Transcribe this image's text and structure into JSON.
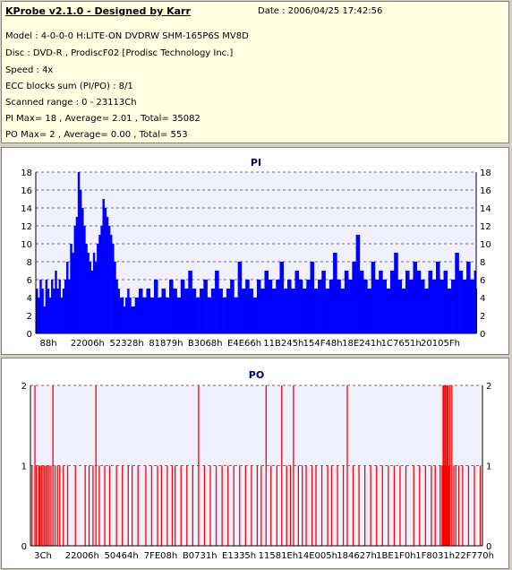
{
  "header": {
    "title": "KProbe v2.1.0 - Designed by Karr",
    "date": "Date : 2006/04/25 17:42:56",
    "lines": [
      "Model : 4-0-0-0 H:LITE-ON DVDRW SHM-165P6S MV8D",
      "Disc : DVD-R , ProdiscF02 [Prodisc Technology Inc.]",
      "Speed : 4x",
      "ECC blocks sum (PI/PO) : 8/1",
      "Scanned range : 0 - 23113Ch",
      "PI Max= 18 , Average= 2.01 , Total= 35082",
      "PO Max= 2 , Average= 0.00 , Total= 553"
    ]
  },
  "chart_data": [
    {
      "type": "bar",
      "title": "PI",
      "color": "#0000ff",
      "ylim": [
        0,
        18
      ],
      "yticks": [
        0,
        2,
        4,
        6,
        8,
        10,
        12,
        14,
        16,
        18
      ],
      "xlim": [
        0,
        23113
      ],
      "xtick_labels": [
        "88h",
        "22006h",
        "52328h",
        "81879h",
        "B3068h",
        "E4E66h",
        "11B245h",
        "154F48h",
        "18E241h",
        "1C7651h",
        "20105Fh"
      ],
      "grid": "dashed",
      "points": [
        [
          0,
          5
        ],
        [
          100,
          4
        ],
        [
          200,
          6
        ],
        [
          300,
          5
        ],
        [
          400,
          3
        ],
        [
          500,
          6
        ],
        [
          600,
          5
        ],
        [
          700,
          4
        ],
        [
          800,
          6
        ],
        [
          900,
          5
        ],
        [
          1000,
          7
        ],
        [
          1100,
          5
        ],
        [
          1200,
          6
        ],
        [
          1300,
          4
        ],
        [
          1400,
          5
        ],
        [
          1500,
          6
        ],
        [
          1600,
          8
        ],
        [
          1700,
          6
        ],
        [
          1800,
          10
        ],
        [
          1900,
          9
        ],
        [
          2000,
          12
        ],
        [
          2100,
          13
        ],
        [
          2200,
          18
        ],
        [
          2300,
          16
        ],
        [
          2400,
          14
        ],
        [
          2500,
          12
        ],
        [
          2600,
          10
        ],
        [
          2700,
          9
        ],
        [
          2800,
          8
        ],
        [
          2900,
          7
        ],
        [
          3000,
          9
        ],
        [
          3100,
          8
        ],
        [
          3200,
          10
        ],
        [
          3300,
          11
        ],
        [
          3400,
          12
        ],
        [
          3500,
          15
        ],
        [
          3600,
          14
        ],
        [
          3700,
          13
        ],
        [
          3800,
          12
        ],
        [
          3900,
          11
        ],
        [
          4000,
          10
        ],
        [
          4100,
          8
        ],
        [
          4200,
          6
        ],
        [
          4300,
          5
        ],
        [
          4400,
          4
        ],
        [
          4500,
          4
        ],
        [
          4600,
          3
        ],
        [
          4700,
          4
        ],
        [
          4800,
          5
        ],
        [
          4900,
          4
        ],
        [
          5000,
          3
        ],
        [
          5200,
          4
        ],
        [
          5400,
          5
        ],
        [
          5600,
          4
        ],
        [
          5800,
          5
        ],
        [
          6000,
          4
        ],
        [
          6200,
          6
        ],
        [
          6400,
          4
        ],
        [
          6600,
          5
        ],
        [
          6800,
          4
        ],
        [
          7000,
          6
        ],
        [
          7200,
          5
        ],
        [
          7400,
          4
        ],
        [
          7600,
          6
        ],
        [
          7800,
          5
        ],
        [
          8000,
          7
        ],
        [
          8200,
          5
        ],
        [
          8400,
          4
        ],
        [
          8600,
          5
        ],
        [
          8800,
          6
        ],
        [
          9000,
          4
        ],
        [
          9200,
          5
        ],
        [
          9400,
          7
        ],
        [
          9600,
          5
        ],
        [
          9800,
          4
        ],
        [
          10000,
          5
        ],
        [
          10200,
          6
        ],
        [
          10400,
          4
        ],
        [
          10600,
          8
        ],
        [
          10800,
          5
        ],
        [
          11000,
          6
        ],
        [
          11200,
          5
        ],
        [
          11400,
          4
        ],
        [
          11600,
          6
        ],
        [
          11800,
          5
        ],
        [
          12000,
          7
        ],
        [
          12200,
          6
        ],
        [
          12400,
          5
        ],
        [
          12600,
          6
        ],
        [
          12800,
          8
        ],
        [
          13000,
          5
        ],
        [
          13200,
          6
        ],
        [
          13400,
          5
        ],
        [
          13600,
          7
        ],
        [
          13800,
          6
        ],
        [
          14000,
          5
        ],
        [
          14200,
          6
        ],
        [
          14400,
          8
        ],
        [
          14600,
          5
        ],
        [
          14800,
          6
        ],
        [
          15000,
          7
        ],
        [
          15200,
          5
        ],
        [
          15400,
          6
        ],
        [
          15600,
          9
        ],
        [
          15800,
          6
        ],
        [
          16000,
          5
        ],
        [
          16200,
          7
        ],
        [
          16400,
          6
        ],
        [
          16600,
          8
        ],
        [
          16800,
          11
        ],
        [
          17000,
          7
        ],
        [
          17200,
          6
        ],
        [
          17400,
          5
        ],
        [
          17600,
          8
        ],
        [
          17800,
          6
        ],
        [
          18000,
          7
        ],
        [
          18200,
          6
        ],
        [
          18400,
          5
        ],
        [
          18600,
          7
        ],
        [
          18800,
          9
        ],
        [
          19000,
          6
        ],
        [
          19200,
          5
        ],
        [
          19400,
          7
        ],
        [
          19600,
          6
        ],
        [
          19800,
          8
        ],
        [
          20000,
          7
        ],
        [
          20200,
          6
        ],
        [
          20400,
          5
        ],
        [
          20600,
          7
        ],
        [
          20800,
          6
        ],
        [
          21000,
          8
        ],
        [
          21200,
          6
        ],
        [
          21400,
          7
        ],
        [
          21600,
          5
        ],
        [
          21800,
          6
        ],
        [
          22000,
          9
        ],
        [
          22200,
          7
        ],
        [
          22400,
          6
        ],
        [
          22600,
          8
        ],
        [
          22800,
          6
        ],
        [
          23000,
          7
        ],
        [
          23113,
          5
        ]
      ]
    },
    {
      "type": "bar",
      "title": "PO",
      "color": "#ff0000",
      "ylim": [
        0,
        2
      ],
      "yticks": [
        0,
        1,
        2
      ],
      "xlim": [
        0,
        23113
      ],
      "xtick_labels": [
        "3Ch",
        "22006h",
        "50464h",
        "7FE08h",
        "B0731h",
        "E1335h",
        "11581Eh",
        "14E005h",
        "184627h",
        "1BE1F0h",
        "1F8031h",
        "22F770h"
      ],
      "grid": "dashed",
      "events": [
        [
          80,
          1
        ],
        [
          230,
          2
        ],
        [
          300,
          1
        ],
        [
          420,
          1
        ],
        [
          480,
          1
        ],
        [
          560,
          1
        ],
        [
          640,
          1
        ],
        [
          720,
          1
        ],
        [
          800,
          1
        ],
        [
          880,
          1
        ],
        [
          960,
          1
        ],
        [
          1050,
          1
        ],
        [
          1150,
          2
        ],
        [
          1260,
          1
        ],
        [
          1380,
          1
        ],
        [
          1500,
          1
        ],
        [
          1680,
          1
        ],
        [
          1900,
          1
        ],
        [
          2300,
          1
        ],
        [
          2800,
          1
        ],
        [
          3000,
          1
        ],
        [
          3200,
          1
        ],
        [
          3350,
          2
        ],
        [
          3520,
          1
        ],
        [
          3800,
          1
        ],
        [
          4050,
          1
        ],
        [
          4400,
          1
        ],
        [
          4700,
          1
        ],
        [
          5000,
          1
        ],
        [
          5200,
          1
        ],
        [
          5500,
          1
        ],
        [
          5900,
          1
        ],
        [
          6200,
          1
        ],
        [
          6500,
          1
        ],
        [
          6700,
          1
        ],
        [
          7000,
          1
        ],
        [
          7250,
          1
        ],
        [
          7400,
          1
        ],
        [
          7700,
          1
        ],
        [
          8000,
          1
        ],
        [
          8300,
          1
        ],
        [
          8600,
          2
        ],
        [
          8900,
          1
        ],
        [
          9200,
          1
        ],
        [
          9500,
          1
        ],
        [
          9800,
          1
        ],
        [
          10100,
          1
        ],
        [
          10400,
          1
        ],
        [
          10700,
          1
        ],
        [
          11000,
          1
        ],
        [
          11300,
          1
        ],
        [
          11600,
          1
        ],
        [
          11800,
          1
        ],
        [
          12050,
          2
        ],
        [
          12300,
          1
        ],
        [
          12600,
          1
        ],
        [
          12850,
          2
        ],
        [
          13100,
          1
        ],
        [
          13300,
          1
        ],
        [
          13450,
          2
        ],
        [
          13700,
          1
        ],
        [
          13900,
          1
        ],
        [
          14100,
          1
        ],
        [
          14400,
          1
        ],
        [
          14600,
          1
        ],
        [
          14900,
          1
        ],
        [
          15200,
          1
        ],
        [
          15400,
          1
        ],
        [
          15700,
          1
        ],
        [
          16000,
          1
        ],
        [
          16200,
          2
        ],
        [
          16500,
          1
        ],
        [
          16800,
          1
        ],
        [
          17100,
          1
        ],
        [
          17400,
          1
        ],
        [
          17700,
          1
        ],
        [
          18000,
          1
        ],
        [
          18300,
          1
        ],
        [
          18600,
          1
        ],
        [
          18900,
          1
        ],
        [
          19200,
          1
        ],
        [
          19600,
          1
        ],
        [
          19900,
          1
        ],
        [
          20200,
          1
        ],
        [
          20500,
          1
        ],
        [
          20700,
          1
        ],
        [
          20950,
          1
        ],
        [
          21050,
          1
        ],
        [
          21100,
          2
        ],
        [
          21130,
          2
        ],
        [
          21160,
          1
        ],
        [
          21190,
          2
        ],
        [
          21230,
          2
        ],
        [
          21260,
          1
        ],
        [
          21300,
          2
        ],
        [
          21350,
          2
        ],
        [
          21400,
          1
        ],
        [
          21450,
          2
        ],
        [
          21550,
          2
        ],
        [
          21650,
          1
        ],
        [
          21750,
          1
        ],
        [
          21900,
          1
        ],
        [
          22100,
          1
        ],
        [
          22400,
          1
        ],
        [
          22700,
          1
        ],
        [
          23000,
          1
        ]
      ]
    }
  ]
}
